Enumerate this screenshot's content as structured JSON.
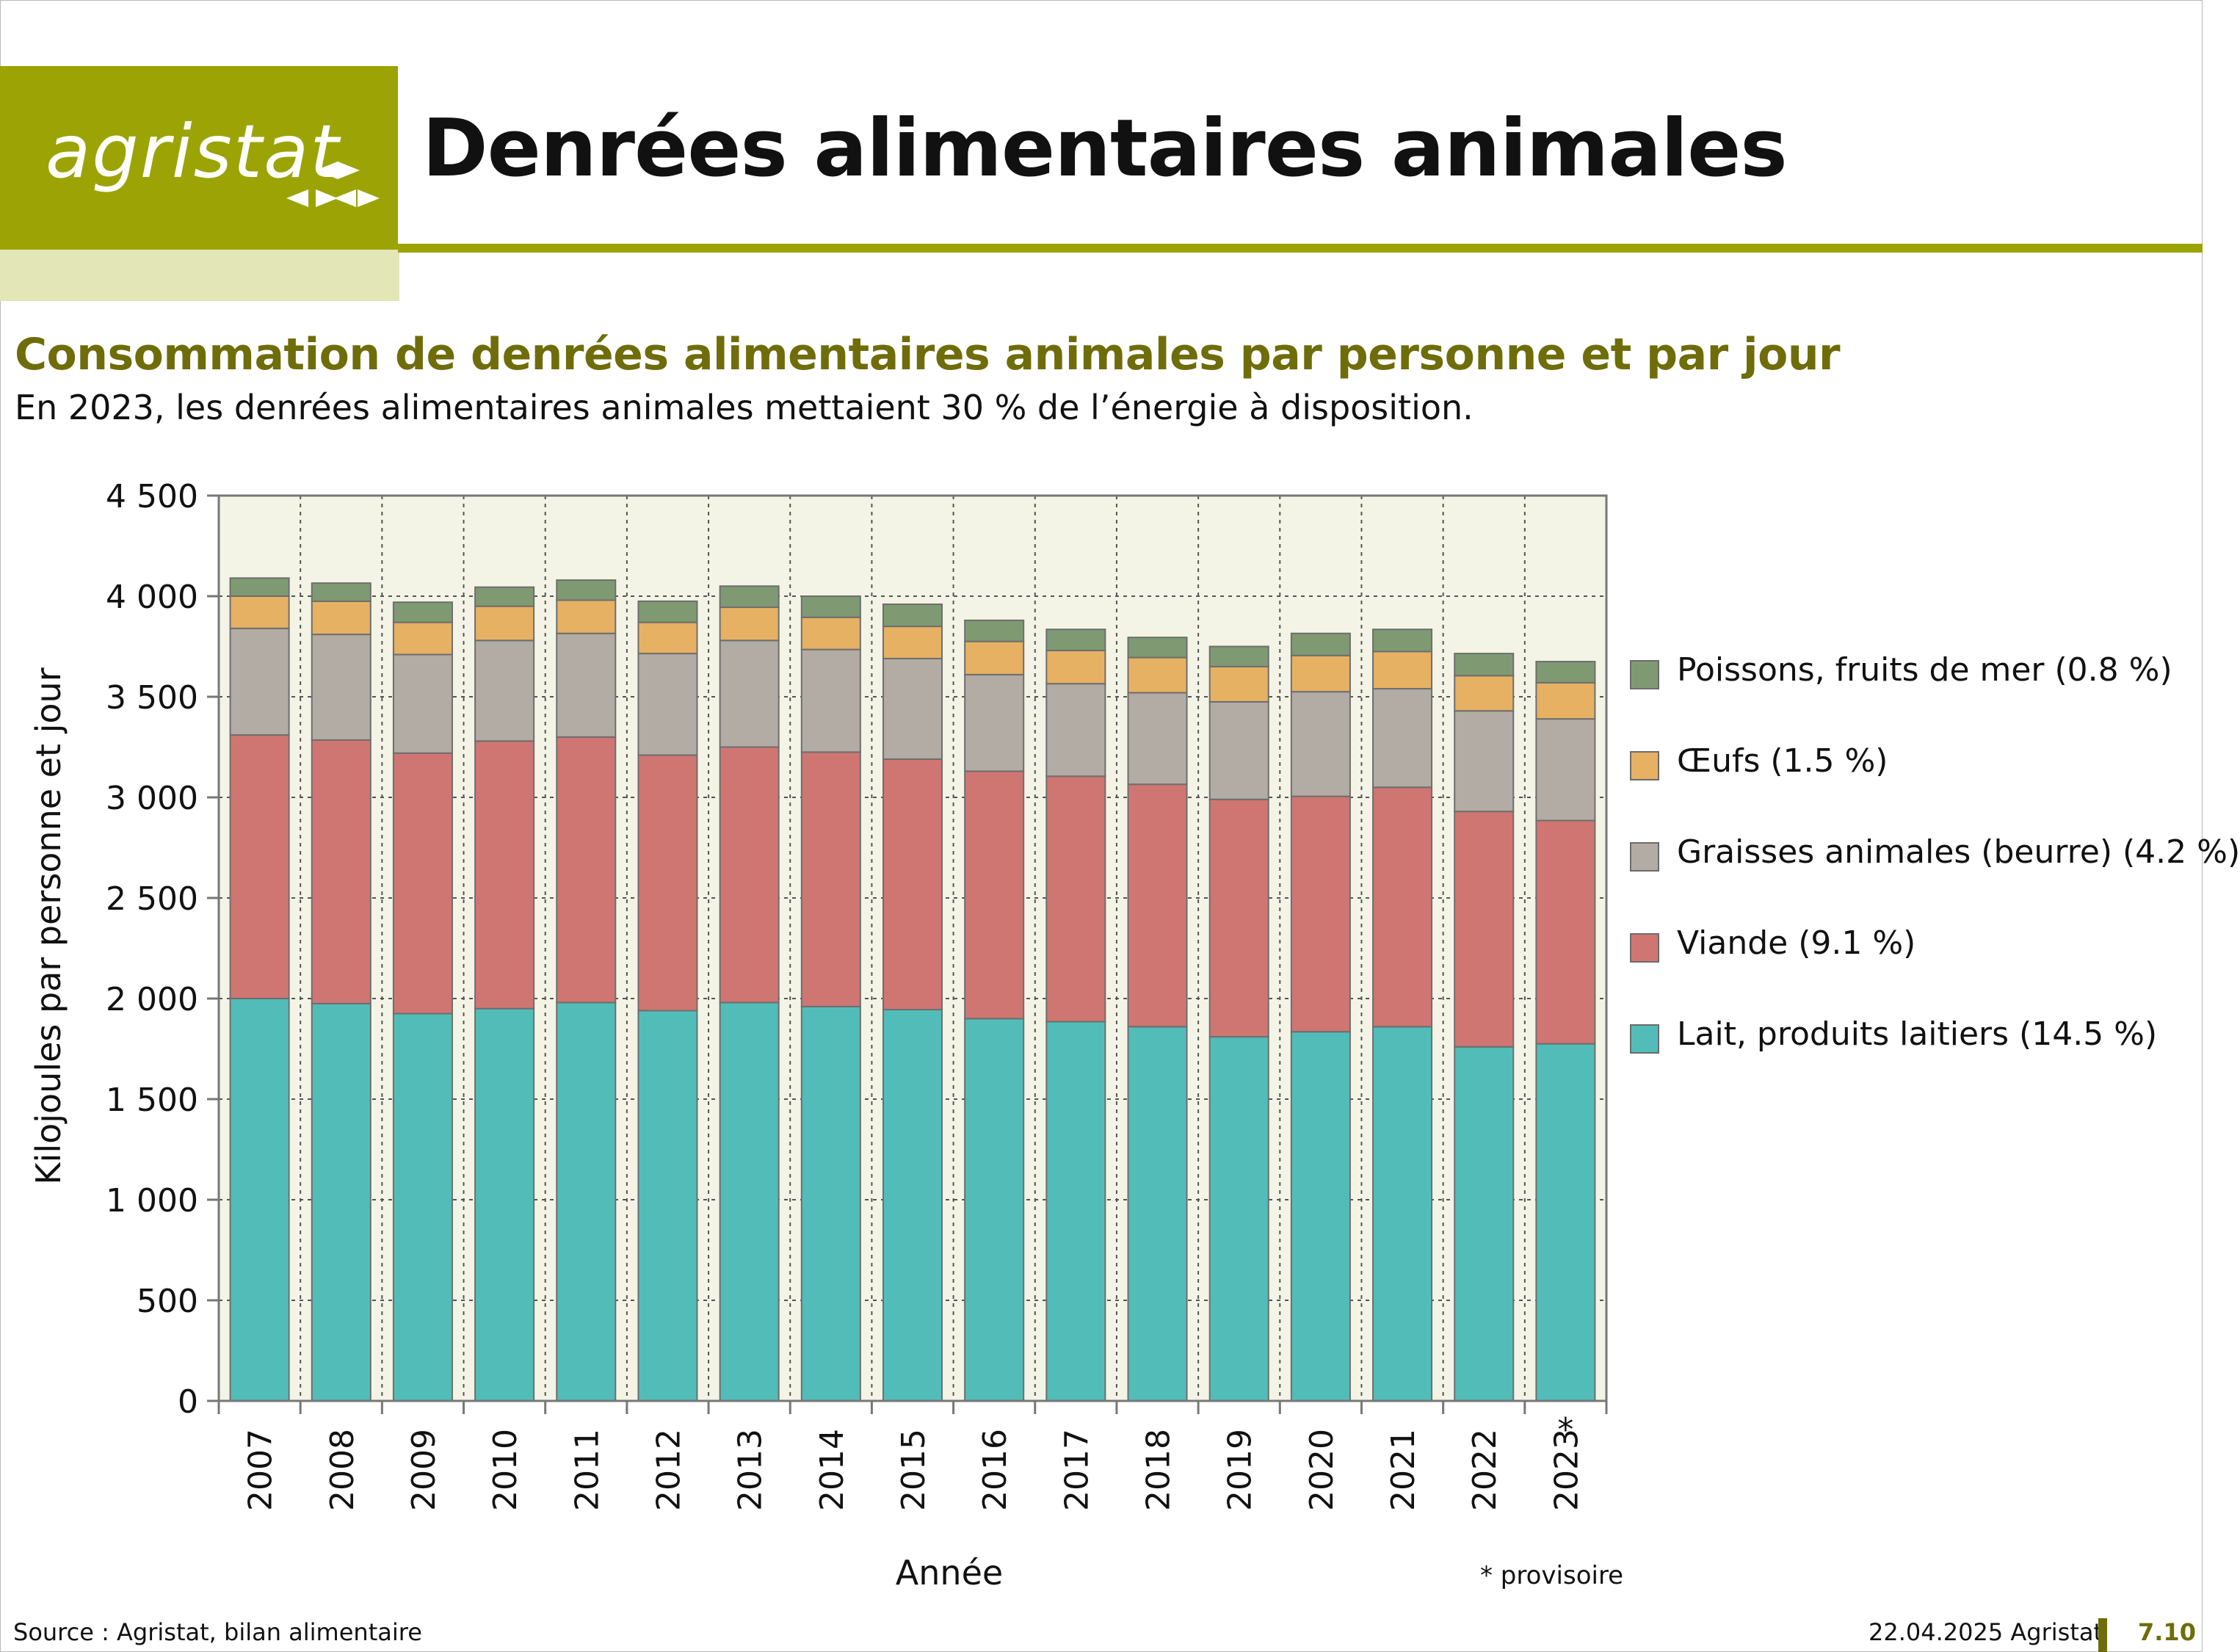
{
  "header": {
    "logo_text": "agristat",
    "page_title": "Denrées alimentaires animales"
  },
  "subtitle": "Consommation de denrées alimentaires animales par personne et par jour",
  "lead": "En 2023, les denrées alimentaires animales mettaient 30 % de l’énergie à disposition.",
  "colors": {
    "brand_green": "#9ba404",
    "brand_light": "#e3e6b6",
    "subtitle": "#6f6d0a",
    "plot_bg": "#f4f4e6"
  },
  "chart_data": {
    "type": "bar",
    "stacked": true,
    "title": "",
    "xlabel": "Année",
    "ylabel": "Kilojoules par personne et jour",
    "ylim": [
      0,
      4500
    ],
    "yticks": [
      0,
      500,
      1000,
      1500,
      2000,
      2500,
      3000,
      3500,
      4000,
      4500
    ],
    "ytick_labels": [
      "0",
      "500",
      "1 000",
      "1 500",
      "2 000",
      "2 500",
      "3 000",
      "3 500",
      "4 000",
      "4 500"
    ],
    "grid": true,
    "legend_position": "right",
    "categories": [
      "2007",
      "2008",
      "2009",
      "2010",
      "2011",
      "2012",
      "2013",
      "2014",
      "2015",
      "2016",
      "2017",
      "2018",
      "2019",
      "2020",
      "2021",
      "2022",
      "2023"
    ],
    "category_marks": [
      "",
      "",
      "",
      "",
      "",
      "",
      "",
      "",
      "",
      "",
      "",
      "",
      "",
      "",
      "",
      "",
      "*"
    ],
    "series": [
      {
        "name": "Lait, produits laitiers (14.5 %)",
        "color": "#52bdb8",
        "values": [
          2000,
          1975,
          1925,
          1950,
          1980,
          1940,
          1980,
          1960,
          1945,
          1900,
          1885,
          1860,
          1810,
          1835,
          1860,
          1760,
          1775
        ]
      },
      {
        "name": "Viande (9.1 %)",
        "color": "#d07672",
        "values": [
          1310,
          1310,
          1295,
          1330,
          1320,
          1270,
          1270,
          1265,
          1245,
          1230,
          1220,
          1205,
          1180,
          1170,
          1190,
          1170,
          1110
        ]
      },
      {
        "name": "Graisses animales (beurre) (4.2 %)",
        "color": "#b3aca4",
        "values": [
          530,
          525,
          490,
          500,
          515,
          505,
          530,
          510,
          500,
          480,
          460,
          455,
          485,
          520,
          490,
          500,
          505
        ]
      },
      {
        "name": "Œufs (1.5 %)",
        "color": "#e6b163",
        "values": [
          160,
          165,
          160,
          170,
          165,
          155,
          165,
          160,
          160,
          165,
          165,
          175,
          175,
          180,
          185,
          175,
          180
        ]
      },
      {
        "name": "Poissons, fruits de mer (0.8 %)",
        "color": "#7f9a73",
        "values": [
          90,
          90,
          100,
          95,
          100,
          105,
          105,
          105,
          110,
          105,
          105,
          100,
          100,
          110,
          110,
          110,
          105
        ]
      }
    ],
    "note": "* provisoire"
  },
  "footer": {
    "source": "Source : Agristat, bilan alimentaire",
    "date": "22.04.2025 Agristat",
    "page": "7.10"
  }
}
